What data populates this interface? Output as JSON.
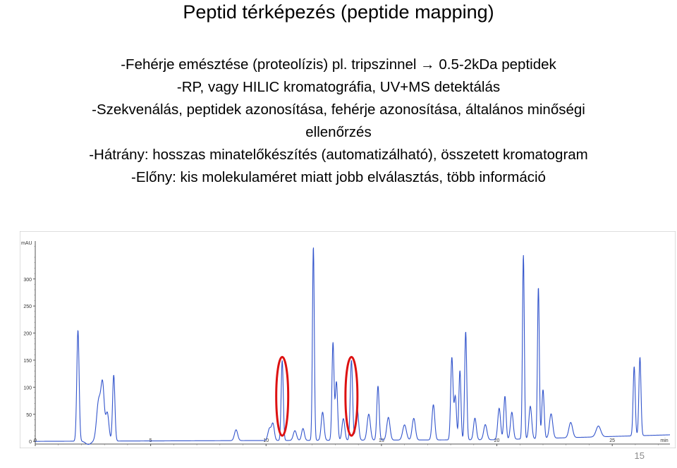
{
  "slide": {
    "title": "Peptid térképezés (peptide mapping)",
    "bullets": [
      "-Fehérje emésztése (proteolízis) pl. tripszinnel → 0.5-2kDa peptidek",
      "-RP, vagy HILIC kromatográfia, UV+MS detektálás",
      "-Szekvenálás, peptidek azonosítása, fehérje azonosítása, általános minőségi",
      "ellenőrzés",
      "-Hátrány: hosszas minatelőkészítés (automatizálható), összetett kromatogram",
      "-Előny: kis molekulaméret miatt jobb elválasztás, több információ"
    ],
    "page_number": "15"
  },
  "chart_data": {
    "type": "line",
    "ylabel": "mAU",
    "xlabel": "min",
    "xlim": [
      0,
      27.5
    ],
    "ylim": [
      -5,
      370
    ],
    "x_ticks": [
      0,
      5,
      10,
      15,
      20,
      25
    ],
    "x_tick_labels": [
      "0",
      "5",
      "10",
      "15",
      "20",
      "25"
    ],
    "y_ticks": [
      0,
      50,
      100,
      150,
      200,
      250,
      300
    ],
    "y_tick_labels": [
      "0",
      "50",
      "100",
      "150",
      "200",
      "250",
      "300"
    ],
    "line_color": "#3355cc",
    "highlight_color": "#dd1111",
    "baseline": [
      [
        0,
        0
      ],
      [
        20,
        3
      ],
      [
        27.5,
        12
      ]
    ],
    "peaks": [
      {
        "t": 1.85,
        "h": 205,
        "w": 0.05
      },
      {
        "t": 2.75,
        "h": 75,
        "w": 0.09
      },
      {
        "t": 2.92,
        "h": 98,
        "w": 0.07
      },
      {
        "t": 3.12,
        "h": 52,
        "w": 0.07
      },
      {
        "t": 3.4,
        "h": 122,
        "w": 0.05
      },
      {
        "t": 8.7,
        "h": 20,
        "w": 0.07
      },
      {
        "t": 10.15,
        "h": 22,
        "w": 0.07
      },
      {
        "t": 10.3,
        "h": 30,
        "w": 0.06
      },
      {
        "t": 10.7,
        "h": 148,
        "w": 0.045
      },
      {
        "t": 11.25,
        "h": 18,
        "w": 0.07
      },
      {
        "t": 11.6,
        "h": 22,
        "w": 0.06
      },
      {
        "t": 12.05,
        "h": 358,
        "w": 0.04
      },
      {
        "t": 12.45,
        "h": 52,
        "w": 0.06
      },
      {
        "t": 12.9,
        "h": 180,
        "w": 0.045
      },
      {
        "t": 13.05,
        "h": 108,
        "w": 0.05
      },
      {
        "t": 13.35,
        "h": 40,
        "w": 0.06
      },
      {
        "t": 13.7,
        "h": 148,
        "w": 0.05
      },
      {
        "t": 13.95,
        "h": 58,
        "w": 0.06
      },
      {
        "t": 14.45,
        "h": 48,
        "w": 0.07
      },
      {
        "t": 14.85,
        "h": 100,
        "w": 0.05
      },
      {
        "t": 15.3,
        "h": 42,
        "w": 0.07
      },
      {
        "t": 16.0,
        "h": 28,
        "w": 0.08
      },
      {
        "t": 16.4,
        "h": 40,
        "w": 0.07
      },
      {
        "t": 17.25,
        "h": 65,
        "w": 0.06
      },
      {
        "t": 18.05,
        "h": 152,
        "w": 0.05
      },
      {
        "t": 18.2,
        "h": 80,
        "w": 0.05
      },
      {
        "t": 18.4,
        "h": 128,
        "w": 0.045
      },
      {
        "t": 18.65,
        "h": 200,
        "w": 0.045
      },
      {
        "t": 19.05,
        "h": 40,
        "w": 0.06
      },
      {
        "t": 19.5,
        "h": 28,
        "w": 0.07
      },
      {
        "t": 20.1,
        "h": 58,
        "w": 0.06
      },
      {
        "t": 20.35,
        "h": 80,
        "w": 0.05
      },
      {
        "t": 20.65,
        "h": 50,
        "w": 0.06
      },
      {
        "t": 21.15,
        "h": 340,
        "w": 0.04
      },
      {
        "t": 21.45,
        "h": 60,
        "w": 0.06
      },
      {
        "t": 21.8,
        "h": 280,
        "w": 0.04
      },
      {
        "t": 22.0,
        "h": 90,
        "w": 0.05
      },
      {
        "t": 22.35,
        "h": 45,
        "w": 0.07
      },
      {
        "t": 23.2,
        "h": 28,
        "w": 0.08
      },
      {
        "t": 24.4,
        "h": 20,
        "w": 0.1
      },
      {
        "t": 25.95,
        "h": 128,
        "w": 0.045
      },
      {
        "t": 26.2,
        "h": 145,
        "w": 0.045
      }
    ],
    "highlighted_peaks_min": [
      10.7,
      13.7
    ]
  }
}
